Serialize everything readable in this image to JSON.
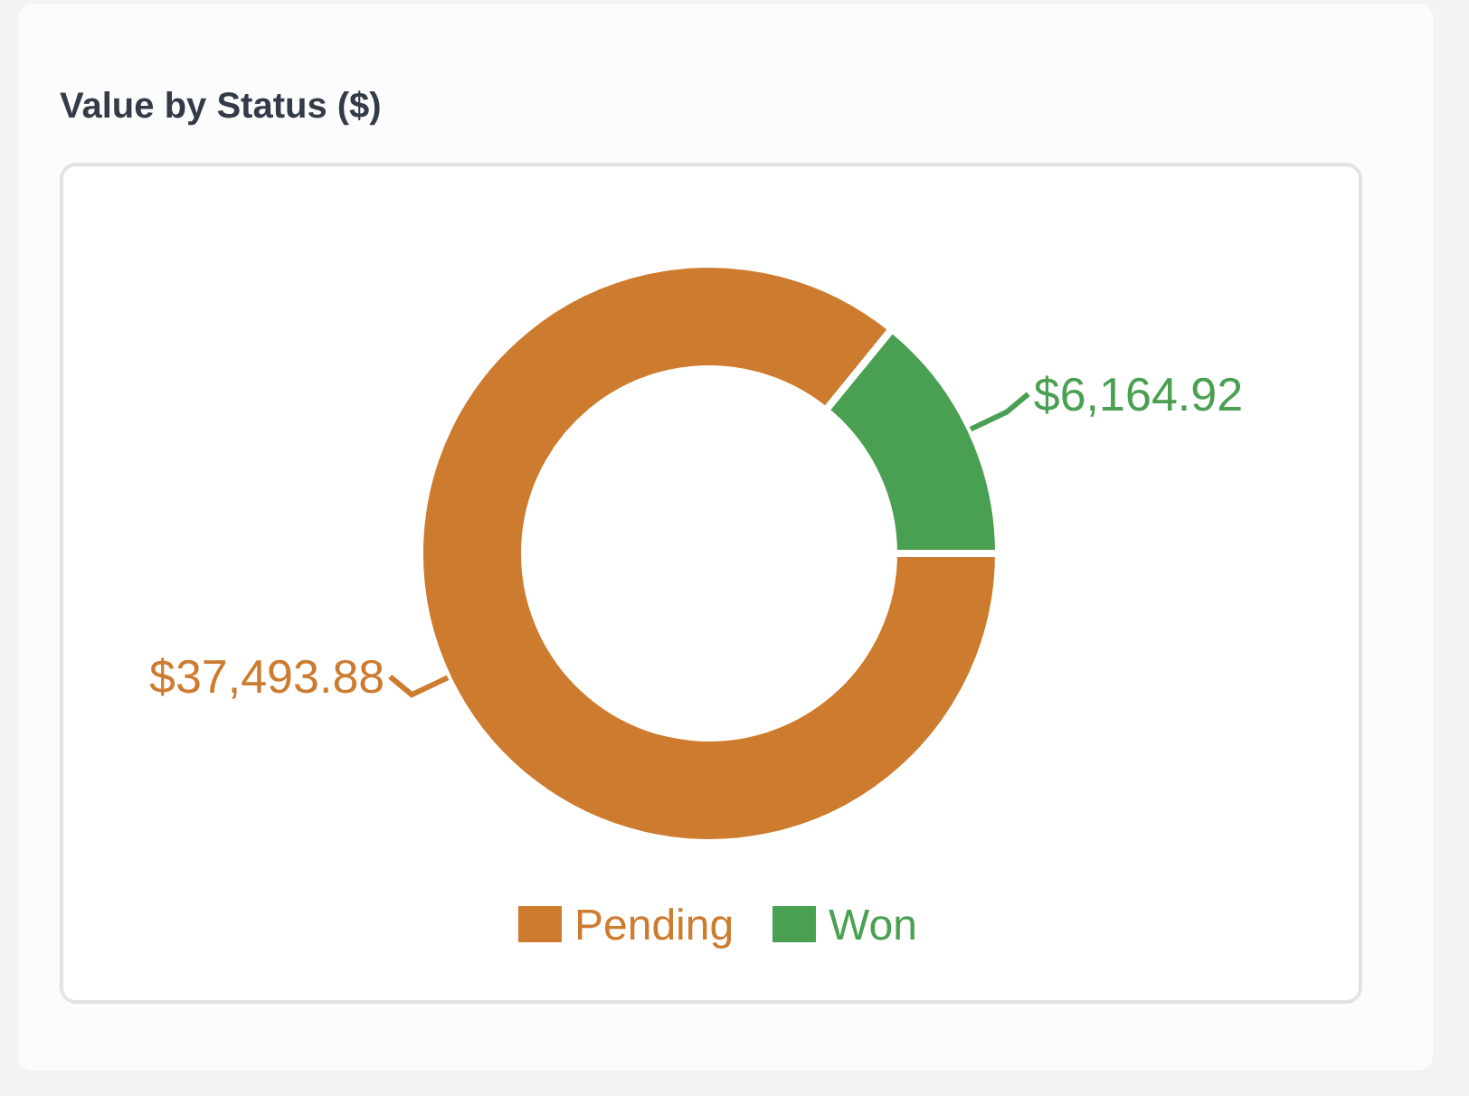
{
  "chart_data": {
    "type": "donut",
    "title": "Value by Status ($)",
    "categories": [
      "Pending",
      "Won"
    ],
    "values": [
      37493.88,
      6164.92
    ],
    "colors": [
      "#cd7b2e",
      "#4aa052"
    ],
    "value_labels": [
      "$37,493.88",
      "$6,164.92"
    ],
    "legend": "bottom"
  }
}
